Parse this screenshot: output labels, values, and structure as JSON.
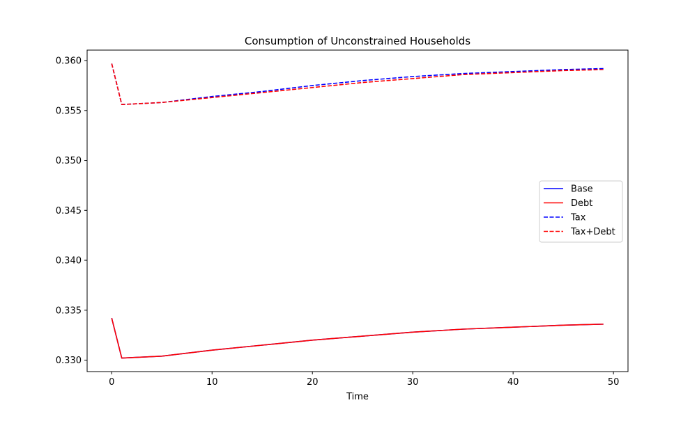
{
  "chart_data": {
    "type": "line",
    "title": "Consumption of Unconstrained Households",
    "xlabel": "Time",
    "ylabel": "",
    "xlim": [
      -2.45,
      51.45
    ],
    "ylim": [
      0.32885,
      0.36105
    ],
    "xticks": [
      0,
      10,
      20,
      30,
      40,
      50
    ],
    "xtick_labels": [
      "0",
      "10",
      "20",
      "30",
      "40",
      "50"
    ],
    "yticks": [
      0.33,
      0.335,
      0.34,
      0.345,
      0.35,
      0.355,
      0.36
    ],
    "ytick_labels": [
      "0.330",
      "0.335",
      "0.340",
      "0.345",
      "0.350",
      "0.355",
      "0.360"
    ],
    "grid": false,
    "legend_position": "center-right",
    "x": [
      0,
      1,
      5,
      10,
      15,
      20,
      25,
      30,
      35,
      40,
      45,
      49
    ],
    "series": [
      {
        "name": "Base",
        "color": "#0000ff",
        "style": "solid",
        "values": [
          0.3342,
          0.3302,
          0.3304,
          0.331,
          0.3315,
          0.332,
          0.3324,
          0.3328,
          0.3331,
          0.3333,
          0.3335,
          0.3336
        ]
      },
      {
        "name": "Debt",
        "color": "#ff0000",
        "style": "solid",
        "values": [
          0.3342,
          0.3302,
          0.3304,
          0.331,
          0.3315,
          0.332,
          0.3324,
          0.3328,
          0.3331,
          0.3333,
          0.3335,
          0.3336
        ]
      },
      {
        "name": "Tax",
        "color": "#0000ff",
        "style": "dashed",
        "values": [
          0.3597,
          0.3556,
          0.3558,
          0.3564,
          0.3569,
          0.3575,
          0.358,
          0.3584,
          0.3587,
          0.3589,
          0.3591,
          0.3592
        ]
      },
      {
        "name": "Tax+Debt",
        "color": "#ff0000",
        "style": "dashed",
        "values": [
          0.3597,
          0.3556,
          0.3558,
          0.3563,
          0.3568,
          0.3573,
          0.3578,
          0.3582,
          0.3586,
          0.3588,
          0.359,
          0.3591
        ]
      }
    ]
  }
}
